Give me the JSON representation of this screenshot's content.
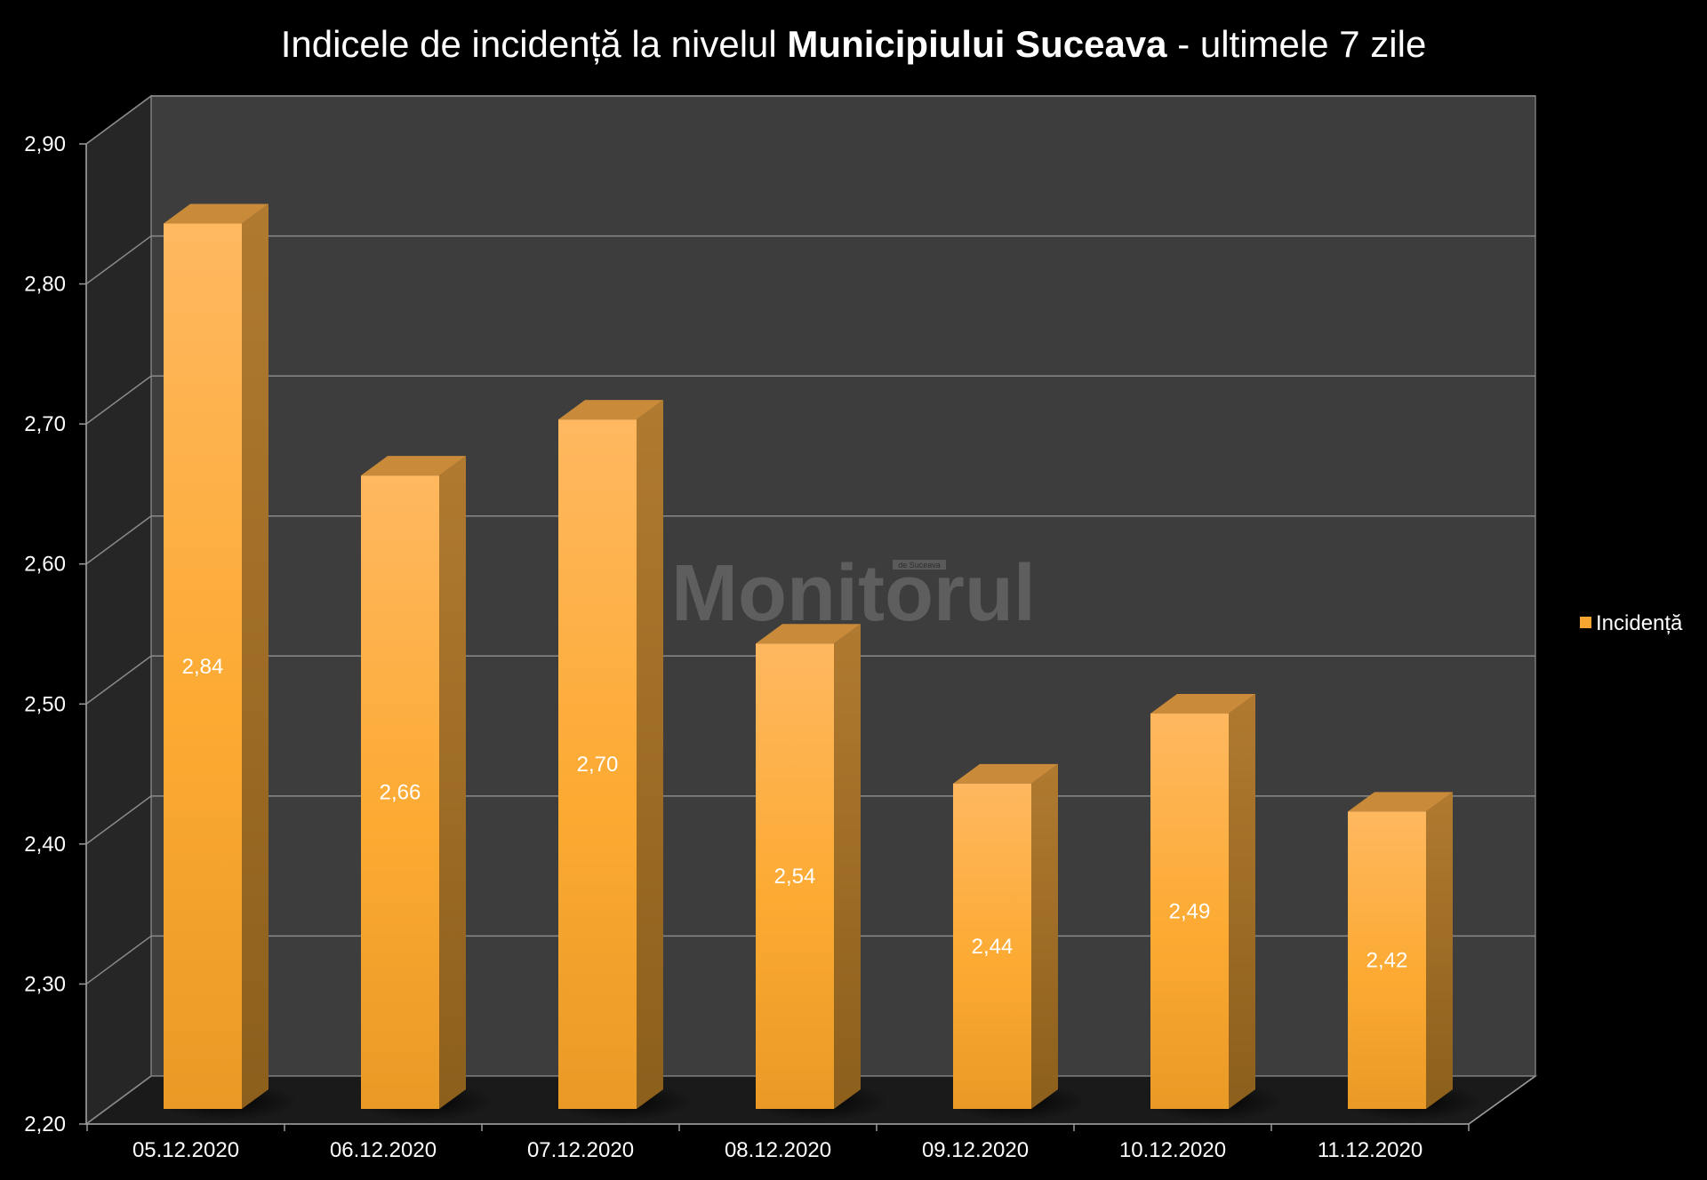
{
  "chart_data": {
    "type": "bar",
    "title": {
      "part1": "Indicele de incidență la nivelul ",
      "part2": "Municipiului Suceava",
      "part3": " - ultimele 7 zile"
    },
    "categories": [
      "05.12.2020",
      "06.12.2020",
      "07.12.2020",
      "08.12.2020",
      "09.12.2020",
      "10.12.2020",
      "11.12.2020"
    ],
    "series": [
      {
        "name": "Incidență",
        "values": [
          2.84,
          2.66,
          2.7,
          2.54,
          2.44,
          2.49,
          2.42
        ],
        "labels": [
          "2,84",
          "2,66",
          "2,70",
          "2,54",
          "2,44",
          "2,49",
          "2,42"
        ]
      }
    ],
    "ylim": [
      2.2,
      2.9
    ],
    "y_ticks": [
      2.2,
      2.3,
      2.4,
      2.5,
      2.6,
      2.7,
      2.8,
      2.9
    ],
    "y_tick_labels": [
      "2,20",
      "2,30",
      "2,40",
      "2,50",
      "2,60",
      "2,70",
      "2,80",
      "2,90"
    ],
    "grid": true,
    "legend": "right",
    "style_3d": true,
    "colors": {
      "background": "#000000",
      "back_wall": "#3d3d3d",
      "side_wall": "#262626",
      "floor": "#1a1a1a",
      "grid": "#8a8a8a",
      "bar_front": "#f7a531",
      "bar_side": "#a87326",
      "bar_top": "#c98a3a"
    }
  },
  "watermark": {
    "text": "Monitorul",
    "small_text": "de Suceava"
  }
}
